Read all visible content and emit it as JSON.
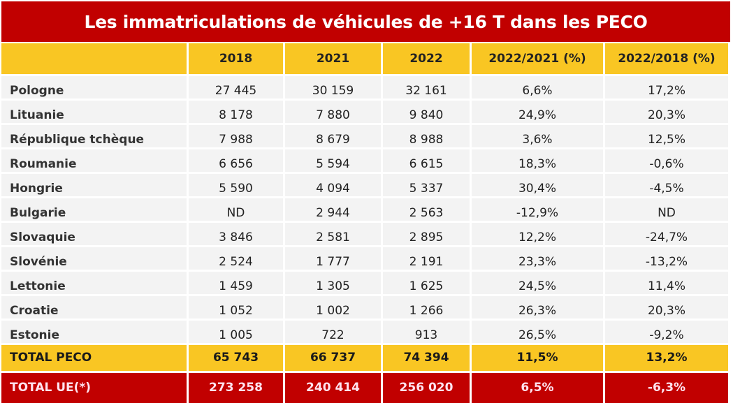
{
  "title": "Les immatriculations de véhicules de +16 T dans les PECO",
  "colors": {
    "title_bg": "#c10000",
    "header_bg": "#f9c623",
    "row_bg": "#f3f3f3",
    "total_ue_bg": "#c10000"
  },
  "chart_data": {
    "type": "table",
    "title": "Les immatriculations de véhicules de +16 T dans les PECO",
    "columns": [
      "",
      "2018",
      "2021",
      "2022",
      "2022/2021 (%)",
      "2022/2018 (%)"
    ],
    "rows": [
      [
        "Pologne",
        "27 445",
        "30 159",
        "32 161",
        "6,6%",
        "17,2%"
      ],
      [
        "Lituanie",
        "8 178",
        "7 880",
        "9 840",
        "24,9%",
        "20,3%"
      ],
      [
        "République tchèque",
        "7 988",
        "8 679",
        "8 988",
        "3,6%",
        "12,5%"
      ],
      [
        "Roumanie",
        "6 656",
        "5 594",
        "6 615",
        "18,3%",
        "-0,6%"
      ],
      [
        "Hongrie",
        "5 590",
        "4 094",
        "5 337",
        "30,4%",
        "-4,5%"
      ],
      [
        "Bulgarie",
        "ND",
        "2 944",
        "2 563",
        "-12,9%",
        "ND"
      ],
      [
        "Slovaquie",
        "3 846",
        "2 581",
        "2 895",
        "12,2%",
        "-24,7%"
      ],
      [
        "Slovénie",
        "2 524",
        "1 777",
        "2 191",
        "23,3%",
        "-13,2%"
      ],
      [
        "Lettonie",
        "1 459",
        "1 305",
        "1 625",
        "24,5%",
        "11,4%"
      ],
      [
        "Croatie",
        "1 052",
        "1 002",
        "1 266",
        "26,3%",
        "20,3%"
      ],
      [
        "Estonie",
        "1 005",
        "722",
        "913",
        "26,5%",
        "-9,2%"
      ]
    ],
    "total_peco": [
      "TOTAL PECO",
      "65 743",
      "66 737",
      "74 394",
      "11,5%",
      "13,2%"
    ],
    "total_ue": [
      "TOTAL UE(*)",
      "273 258",
      "240 414",
      "256 020",
      "6,5%",
      "-6,3%"
    ]
  }
}
